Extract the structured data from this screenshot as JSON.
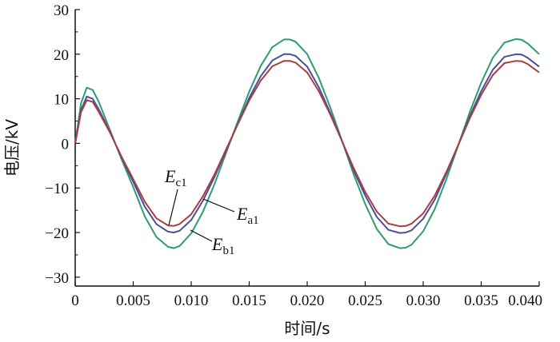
{
  "chart_data": {
    "type": "line",
    "xlabel": "时间/s",
    "ylabel": "电压/kV",
    "xlim": [
      0,
      0.04
    ],
    "ylim": [
      -32,
      30
    ],
    "x_ticks": [
      0,
      0.005,
      0.01,
      0.015,
      0.02,
      0.025,
      0.03,
      0.035,
      0.04
    ],
    "x_tick_labels": [
      "0",
      "0.005",
      "0.010",
      "0.015",
      "0.020",
      "0.025",
      "0.030",
      "0.035",
      "0.040"
    ],
    "y_ticks": [
      -30,
      -20,
      -10,
      0,
      10,
      20,
      30
    ],
    "y_tick_labels": [
      "−30",
      "−20",
      "−10",
      "0",
      "10",
      "20",
      "30"
    ],
    "grid": false,
    "series": [
      {
        "name": "Eb1",
        "color": "#2e9a78",
        "x": [
          0,
          0.0005,
          0.001,
          0.0015,
          0.002,
          0.003,
          0.004,
          0.005,
          0.006,
          0.007,
          0.008,
          0.0085,
          0.009,
          0.01,
          0.011,
          0.012,
          0.013,
          0.014,
          0.015,
          0.016,
          0.017,
          0.018,
          0.0185,
          0.019,
          0.02,
          0.021,
          0.022,
          0.023,
          0.024,
          0.025,
          0.026,
          0.027,
          0.028,
          0.0285,
          0.029,
          0.03,
          0.031,
          0.032,
          0.033,
          0.034,
          0.035,
          0.036,
          0.037,
          0.038,
          0.0385,
          0.039,
          0.04
        ],
        "values": [
          0,
          9,
          12.5,
          12,
          9.5,
          3,
          -3.6,
          -9.8,
          -16.4,
          -21,
          -23.2,
          -23.5,
          -23,
          -20.2,
          -15.4,
          -9.2,
          -2.2,
          4.8,
          11.6,
          17.4,
          21.6,
          23.3,
          23.3,
          22.8,
          20,
          14.7,
          8,
          0.6,
          -6.9,
          -13.6,
          -19.2,
          -22.6,
          -23.5,
          -23.4,
          -22.7,
          -19.7,
          -14.7,
          -8,
          -0.6,
          6.9,
          13.6,
          19.2,
          22.6,
          23.4,
          23.2,
          22.4,
          20
        ]
      },
      {
        "name": "Ea1",
        "color": "#4a4f9a",
        "x": [
          0,
          0.0005,
          0.001,
          0.0015,
          0.002,
          0.003,
          0.004,
          0.005,
          0.006,
          0.007,
          0.008,
          0.0085,
          0.009,
          0.01,
          0.011,
          0.012,
          0.013,
          0.014,
          0.015,
          0.016,
          0.017,
          0.018,
          0.0185,
          0.019,
          0.02,
          0.021,
          0.022,
          0.023,
          0.024,
          0.025,
          0.026,
          0.027,
          0.028,
          0.0285,
          0.029,
          0.03,
          0.031,
          0.032,
          0.033,
          0.034,
          0.035,
          0.036,
          0.037,
          0.038,
          0.0385,
          0.039,
          0.04
        ],
        "values": [
          0,
          7.5,
          10.5,
          10,
          7.8,
          2.6,
          -3.3,
          -8.6,
          -14.2,
          -18.1,
          -19.8,
          -20,
          -19.6,
          -17.2,
          -12.9,
          -7.6,
          -1.7,
          4.3,
          10.2,
          15.1,
          18.6,
          20,
          20,
          19.6,
          17.2,
          12.6,
          6.8,
          0.5,
          -6,
          -11.7,
          -16.5,
          -19.4,
          -20.1,
          -20,
          -19.5,
          -16.9,
          -12.6,
          -6.8,
          -0.5,
          6,
          11.7,
          16.5,
          19.4,
          20,
          19.9,
          19.2,
          17.2
        ]
      },
      {
        "name": "Ec1",
        "color": "#a83e42",
        "x": [
          0,
          0.0005,
          0.001,
          0.0015,
          0.002,
          0.003,
          0.004,
          0.005,
          0.006,
          0.007,
          0.008,
          0.0085,
          0.009,
          0.01,
          0.011,
          0.012,
          0.013,
          0.014,
          0.015,
          0.016,
          0.017,
          0.018,
          0.0185,
          0.019,
          0.02,
          0.021,
          0.022,
          0.023,
          0.024,
          0.025,
          0.026,
          0.027,
          0.028,
          0.0285,
          0.029,
          0.03,
          0.031,
          0.032,
          0.033,
          0.034,
          0.035,
          0.036,
          0.037,
          0.038,
          0.0385,
          0.039,
          0.04
        ],
        "values": [
          0,
          7,
          9.7,
          9.3,
          7.2,
          2.4,
          -3,
          -8,
          -13.1,
          -16.8,
          -18.4,
          -18.5,
          -18.1,
          -15.9,
          -11.9,
          -7,
          -1.4,
          4.2,
          9.6,
          14.1,
          17.3,
          18.5,
          18.5,
          18.1,
          15.9,
          11.7,
          6.4,
          0.5,
          -5.5,
          -10.9,
          -15.3,
          -18,
          -18.6,
          -18.5,
          -18,
          -15.7,
          -11.7,
          -6.4,
          -0.5,
          5.5,
          10.9,
          15.3,
          18,
          18.5,
          18.4,
          17.8,
          15.9
        ]
      }
    ],
    "annotations": [
      {
        "base": "E",
        "sub": "c1",
        "series": "Ec1"
      },
      {
        "base": "E",
        "sub": "a1",
        "series": "Ea1"
      },
      {
        "base": "E",
        "sub": "b1",
        "series": "Eb1"
      }
    ]
  }
}
